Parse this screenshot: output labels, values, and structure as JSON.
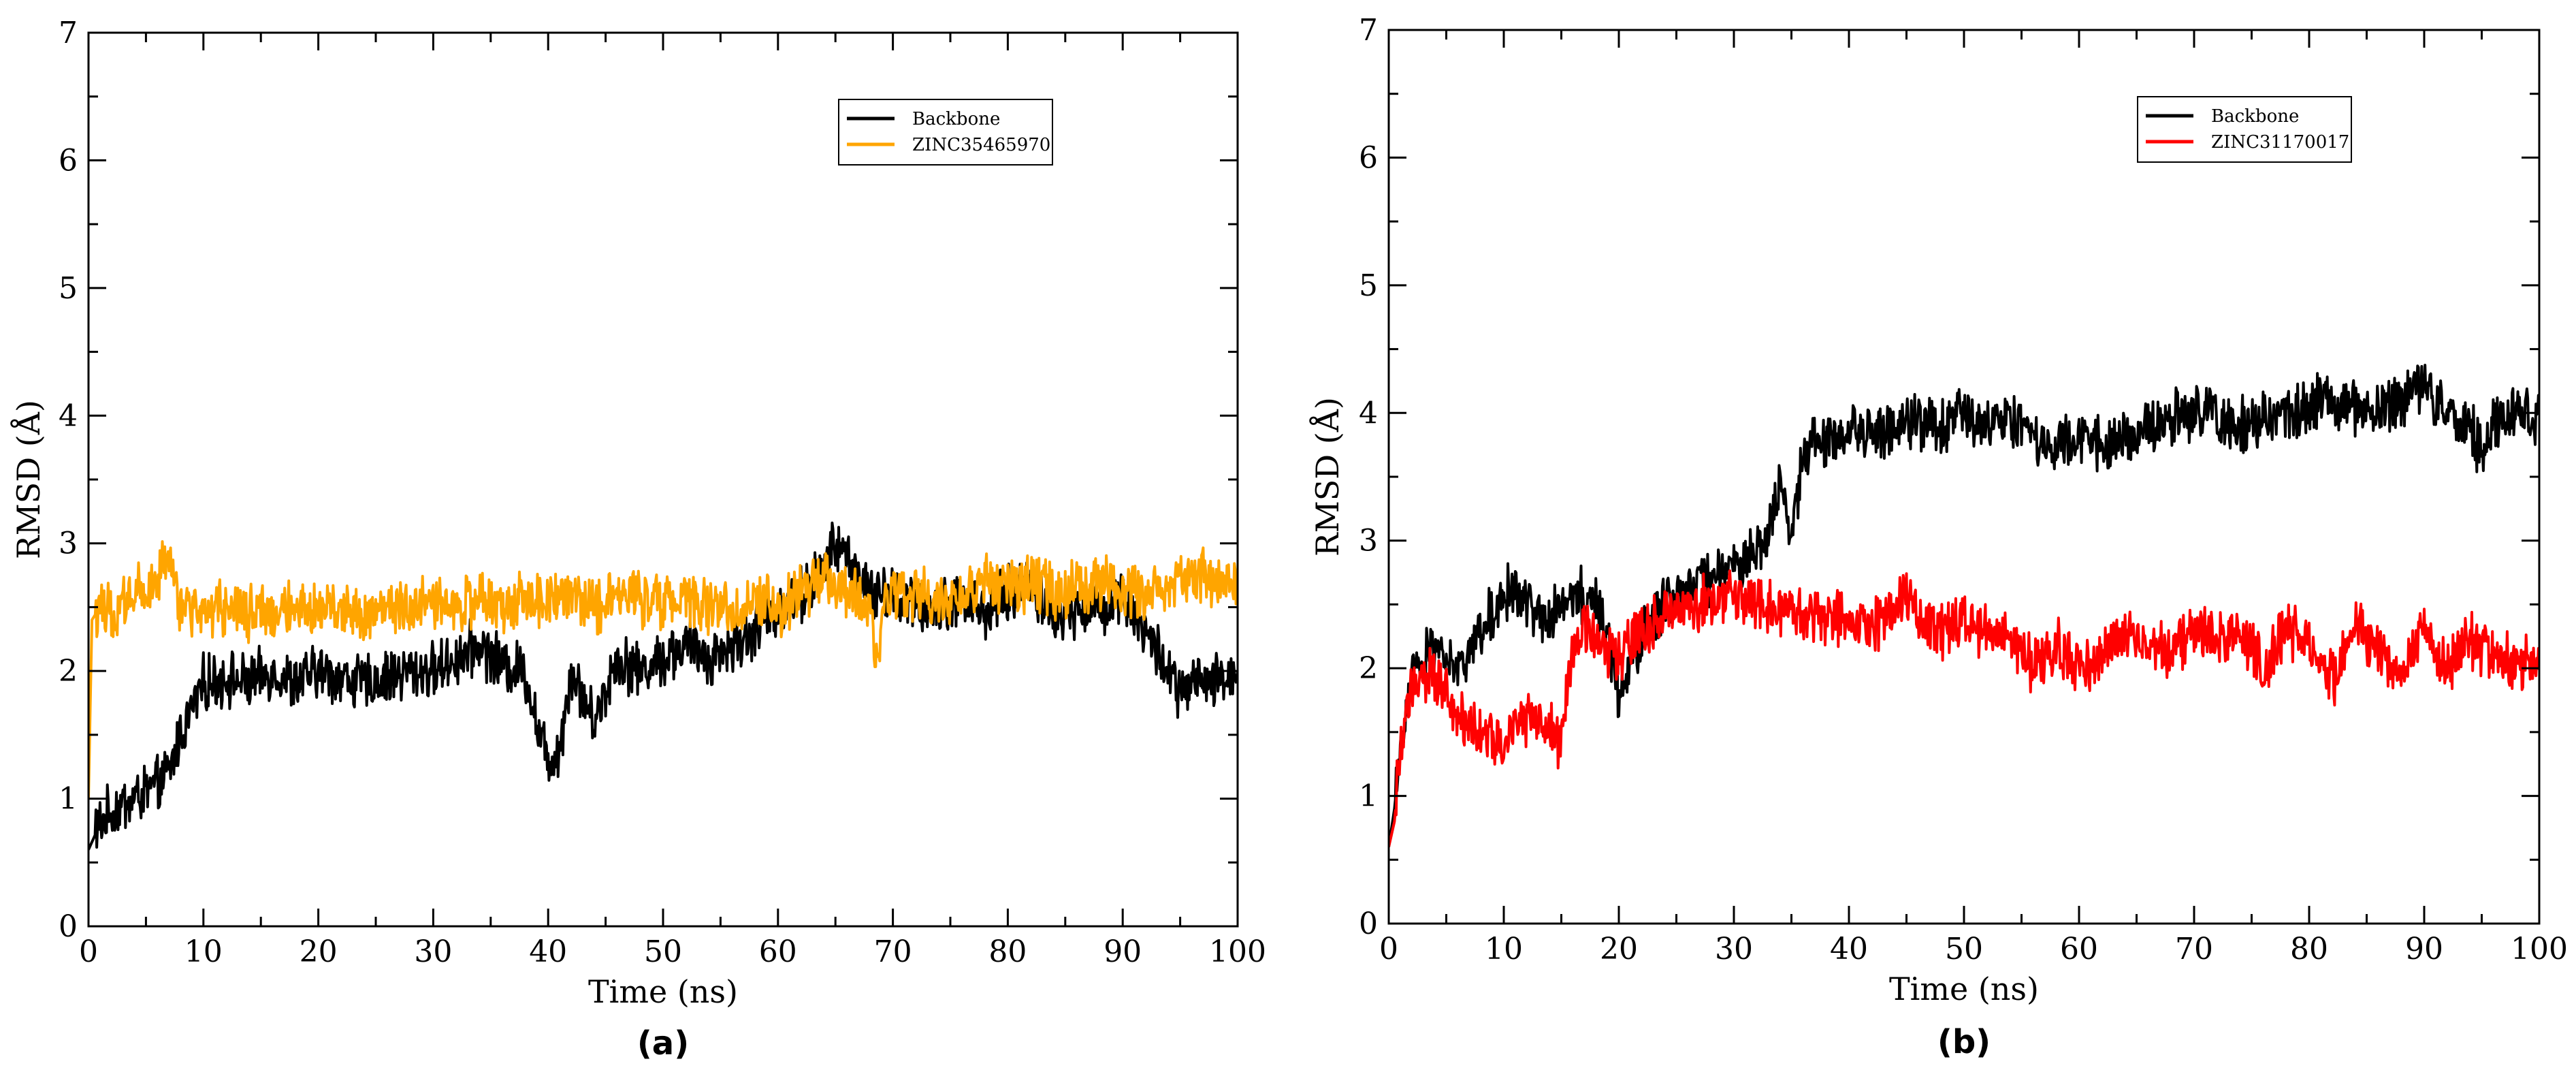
{
  "chart_data": [
    {
      "type": "line",
      "panel_label": "(a)",
      "xlabel": "Time (ns)",
      "ylabel": "RMSD (Å)",
      "xlim": [
        0,
        100
      ],
      "ylim": [
        0,
        7
      ],
      "x_ticks": [
        0,
        10,
        20,
        30,
        40,
        50,
        60,
        70,
        80,
        90,
        100
      ],
      "y_ticks": [
        0,
        1,
        2,
        3,
        4,
        5,
        6,
        7
      ],
      "legend_position": "top-right",
      "series": [
        {
          "name": "Backbone",
          "color": "#000000",
          "x": [
            0,
            1,
            2,
            3,
            4,
            5,
            6,
            7,
            8,
            9,
            10,
            12,
            14,
            16,
            18,
            20,
            22,
            24,
            26,
            28,
            30,
            32,
            34,
            36,
            38,
            39,
            40,
            41,
            42,
            44,
            46,
            48,
            50,
            52,
            54,
            56,
            58,
            60,
            62,
            64,
            65,
            66,
            68,
            70,
            72,
            74,
            76,
            78,
            80,
            82,
            84,
            86,
            88,
            90,
            92,
            94,
            95,
            96,
            98,
            100
          ],
          "values": [
            0.6,
            0.8,
            0.9,
            0.95,
            1.0,
            1.05,
            1.1,
            1.2,
            1.5,
            1.7,
            1.9,
            1.95,
            1.9,
            2.0,
            1.9,
            2.0,
            1.95,
            1.9,
            1.95,
            2.0,
            2.0,
            2.1,
            2.2,
            2.05,
            2.0,
            1.6,
            1.3,
            1.4,
            2.0,
            1.6,
            2.1,
            2.0,
            2.1,
            2.2,
            2.1,
            2.2,
            2.3,
            2.5,
            2.6,
            2.8,
            3.0,
            2.9,
            2.6,
            2.6,
            2.5,
            2.5,
            2.6,
            2.45,
            2.6,
            2.7,
            2.4,
            2.5,
            2.5,
            2.6,
            2.3,
            2.0,
            1.8,
            1.9,
            1.9,
            2.0
          ]
        },
        {
          "name": "ZINC35465970",
          "color": "#FFA500",
          "x": [
            0,
            0.3,
            1,
            2,
            4,
            6,
            7,
            8,
            10,
            12,
            14,
            16,
            18,
            20,
            22,
            24,
            26,
            28,
            30,
            32,
            34,
            36,
            38,
            40,
            42,
            44,
            46,
            48,
            50,
            52,
            54,
            56,
            58,
            60,
            62,
            64,
            66,
            68,
            68.5,
            69,
            70,
            72,
            74,
            76,
            78,
            80,
            82,
            84,
            86,
            88,
            90,
            92,
            94,
            96,
            98,
            100
          ],
          "values": [
            1.0,
            2.4,
            2.5,
            2.45,
            2.6,
            2.7,
            2.9,
            2.5,
            2.45,
            2.5,
            2.45,
            2.5,
            2.45,
            2.5,
            2.5,
            2.45,
            2.5,
            2.5,
            2.55,
            2.5,
            2.55,
            2.5,
            2.55,
            2.55,
            2.6,
            2.5,
            2.6,
            2.55,
            2.55,
            2.6,
            2.5,
            2.5,
            2.55,
            2.5,
            2.6,
            2.7,
            2.6,
            2.55,
            2.0,
            2.4,
            2.6,
            2.6,
            2.55,
            2.6,
            2.7,
            2.65,
            2.7,
            2.6,
            2.65,
            2.7,
            2.6,
            2.65,
            2.7,
            2.75,
            2.7,
            2.7
          ]
        }
      ]
    },
    {
      "type": "line",
      "panel_label": "(b)",
      "xlabel": "Time (ns)",
      "ylabel": "RMSD (Å)",
      "xlim": [
        0,
        100
      ],
      "ylim": [
        0,
        7
      ],
      "x_ticks": [
        0,
        10,
        20,
        30,
        40,
        50,
        60,
        70,
        80,
        90,
        100
      ],
      "y_ticks": [
        0,
        1,
        2,
        3,
        4,
        5,
        6,
        7
      ],
      "legend_position": "top-right",
      "series": [
        {
          "name": "Backbone",
          "color": "#000000",
          "x": [
            0,
            0.5,
            1,
            2,
            3,
            4,
            5,
            6,
            8,
            10,
            12,
            14,
            16,
            18,
            19,
            20,
            21,
            22,
            24,
            26,
            28,
            30,
            32,
            33,
            34,
            35,
            36,
            38,
            40,
            42,
            44,
            46,
            48,
            50,
            52,
            54,
            56,
            58,
            60,
            62,
            64,
            66,
            68,
            70,
            72,
            74,
            76,
            78,
            80,
            82,
            84,
            86,
            88,
            90,
            92,
            94,
            95,
            96,
            98,
            100
          ],
          "values": [
            0.6,
            0.9,
            1.4,
            1.9,
            2.1,
            2.2,
            2.1,
            2.0,
            2.3,
            2.6,
            2.5,
            2.4,
            2.6,
            2.5,
            2.3,
            1.8,
            2.0,
            2.3,
            2.5,
            2.6,
            2.7,
            2.8,
            2.9,
            3.1,
            3.4,
            3.0,
            3.7,
            3.8,
            3.9,
            3.85,
            3.9,
            3.95,
            3.9,
            4.0,
            3.9,
            3.95,
            3.8,
            3.7,
            3.8,
            3.75,
            3.8,
            3.9,
            3.95,
            4.0,
            4.0,
            3.9,
            3.95,
            4.0,
            4.05,
            4.1,
            4.0,
            4.05,
            4.1,
            4.2,
            4.0,
            3.9,
            3.7,
            3.9,
            4.0,
            4.0
          ]
        },
        {
          "name": "ZINC31170017",
          "color": "#FF0000",
          "x": [
            0,
            0.5,
            1,
            2,
            3,
            4,
            5,
            6,
            8,
            10,
            12,
            14,
            15,
            16,
            17,
            18,
            20,
            22,
            24,
            26,
            28,
            30,
            32,
            34,
            36,
            38,
            40,
            42,
            44,
            45,
            46,
            48,
            50,
            52,
            54,
            56,
            58,
            60,
            62,
            64,
            66,
            68,
            70,
            72,
            74,
            76,
            78,
            80,
            82,
            84,
            86,
            88,
            90,
            92,
            94,
            96,
            98,
            100
          ],
          "values": [
            0.6,
            0.8,
            1.4,
            1.9,
            2.0,
            1.9,
            1.8,
            1.6,
            1.5,
            1.4,
            1.6,
            1.5,
            1.4,
            2.2,
            2.3,
            2.2,
            2.1,
            2.3,
            2.4,
            2.5,
            2.5,
            2.55,
            2.5,
            2.45,
            2.4,
            2.4,
            2.4,
            2.35,
            2.4,
            2.6,
            2.35,
            2.3,
            2.35,
            2.3,
            2.3,
            2.0,
            2.2,
            2.0,
            2.1,
            2.3,
            2.2,
            2.1,
            2.3,
            2.2,
            2.3,
            2.0,
            2.3,
            2.2,
            1.9,
            2.3,
            2.2,
            1.9,
            2.3,
            2.0,
            2.2,
            2.1,
            2.0,
            2.1
          ]
        }
      ]
    }
  ]
}
